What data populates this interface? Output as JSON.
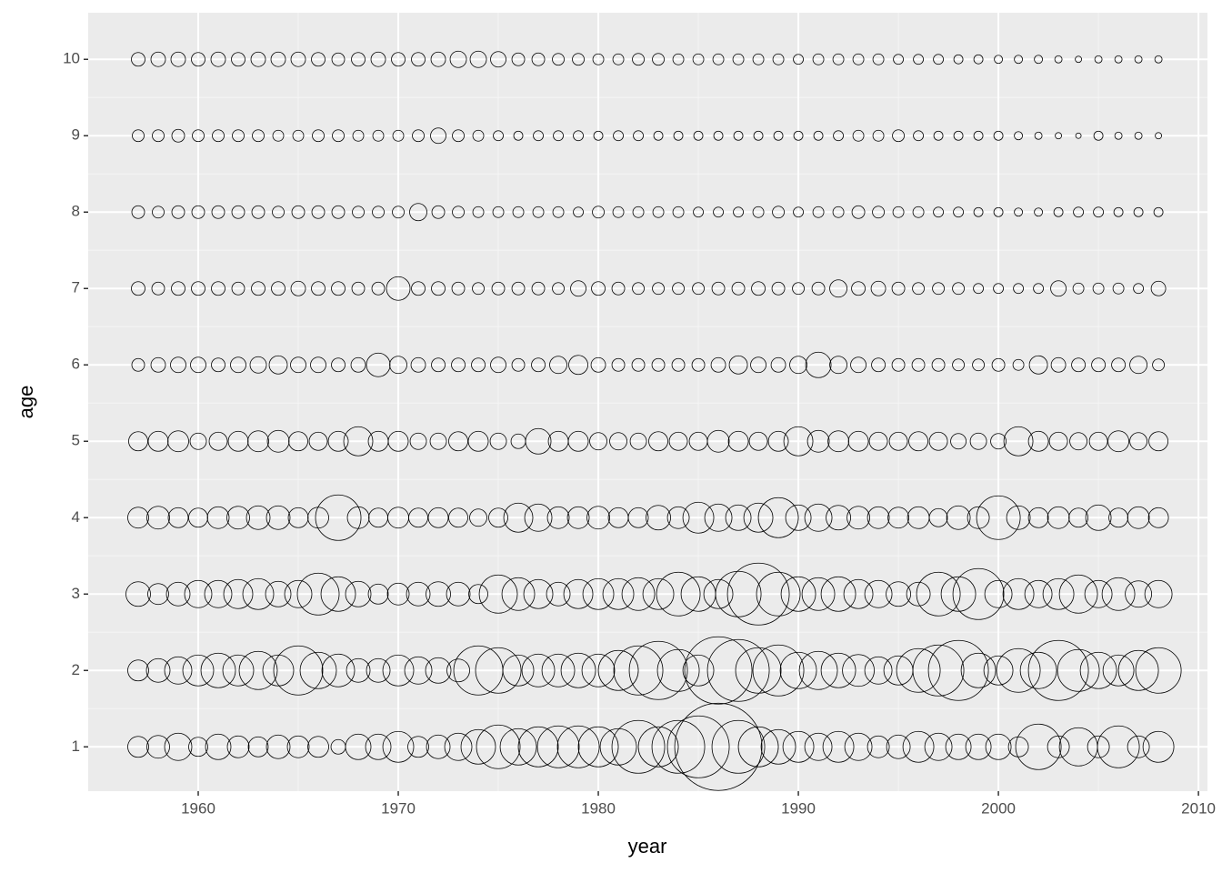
{
  "chart_data": {
    "type": "bubble",
    "x_label": "year",
    "y_label": "age",
    "x": [
      1957,
      1958,
      1959,
      1960,
      1961,
      1962,
      1963,
      1964,
      1965,
      1966,
      1967,
      1968,
      1969,
      1970,
      1971,
      1972,
      1973,
      1974,
      1975,
      1976,
      1977,
      1978,
      1979,
      1980,
      1981,
      1982,
      1983,
      1984,
      1985,
      1986,
      1987,
      1988,
      1989,
      1990,
      1991,
      1992,
      1993,
      1994,
      1995,
      1996,
      1997,
      1998,
      1999,
      2000,
      2001,
      2002,
      2003,
      2004,
      2005,
      2006,
      2007,
      2008
    ],
    "rows": [
      {
        "y": 1,
        "sizes": [
          11.5,
          12.5,
          15,
          10.5,
          14,
          12,
          11,
          13,
          12,
          11.5,
          8,
          14,
          14,
          17,
          11.5,
          13,
          15,
          19,
          24,
          20,
          22,
          23,
          23,
          22,
          20,
          29,
          22,
          29,
          34,
          48,
          29,
          22,
          19,
          17,
          15,
          17,
          15,
          12,
          13,
          17,
          15,
          14,
          14,
          14,
          11,
          25,
          12,
          21,
          12,
          23,
          12,
          17
        ]
      },
      {
        "y": 2,
        "sizes": [
          11.5,
          13,
          15,
          17,
          19,
          17,
          21,
          17,
          27,
          20,
          18,
          13,
          13,
          17,
          15,
          14,
          12.5,
          27,
          25,
          17,
          18,
          18,
          19,
          18,
          22,
          27,
          32,
          23,
          17,
          37,
          34,
          25,
          28,
          20,
          21,
          19,
          17.5,
          15,
          16,
          24,
          28,
          33,
          19,
          16,
          24,
          20,
          33,
          23,
          20,
          17,
          22,
          25
        ]
      },
      {
        "y": 3,
        "sizes": [
          13.5,
          11.5,
          13,
          15,
          15,
          16,
          17,
          14,
          15,
          23,
          19,
          14,
          11,
          12,
          13,
          13.5,
          13,
          10.5,
          21,
          18,
          16,
          13,
          16,
          17,
          17,
          18,
          17,
          24,
          19,
          16,
          25,
          34,
          24,
          19,
          18,
          19,
          16,
          15,
          13.5,
          13,
          24,
          19,
          28,
          15,
          17,
          15,
          17,
          21,
          15,
          18,
          14.5,
          15
        ]
      },
      {
        "y": 4,
        "sizes": [
          11.5,
          12.5,
          11,
          10.5,
          12,
          12.5,
          13,
          13,
          11,
          11.5,
          25,
          12,
          10.5,
          11.5,
          10.5,
          11,
          10.5,
          9.5,
          10.5,
          16,
          15,
          12,
          12,
          12.5,
          11,
          11,
          13.5,
          12,
          17,
          15,
          14,
          16,
          22,
          14,
          15,
          13.5,
          12.5,
          12,
          11.5,
          12,
          10,
          13,
          12,
          24,
          13,
          11,
          12,
          10.5,
          14,
          10.5,
          12,
          11
        ]
      },
      {
        "y": 5,
        "sizes": [
          10.5,
          11,
          11.5,
          9,
          10,
          11,
          11.5,
          12,
          10.5,
          10,
          11,
          16,
          11,
          11,
          9,
          9,
          10.5,
          11,
          9,
          8,
          14,
          11,
          11,
          9.5,
          9.5,
          9,
          10.5,
          10,
          10,
          12,
          11,
          10,
          11,
          16,
          12,
          11.5,
          11,
          10,
          10,
          10.5,
          10,
          8.5,
          9,
          8.5,
          16,
          11,
          10,
          9.5,
          10,
          11.5,
          9.5,
          10.5
        ]
      },
      {
        "y": 6,
        "sizes": [
          7,
          8,
          8.5,
          8.5,
          7.5,
          8.5,
          9,
          10,
          8.5,
          8.5,
          7.5,
          8,
          13,
          9.5,
          8,
          7.5,
          7.5,
          7.5,
          8.5,
          7,
          7.5,
          9.5,
          10.5,
          8,
          7,
          7,
          7,
          7,
          7,
          8,
          10,
          8.5,
          8,
          9.5,
          14,
          9.5,
          8.5,
          7.5,
          7,
          7,
          7,
          6.5,
          6.5,
          7,
          6,
          10,
          8,
          7.5,
          7.5,
          7.5,
          9.5,
          6.5
        ]
      },
      {
        "y": 7,
        "sizes": [
          7.5,
          7,
          7.5,
          7.5,
          7.5,
          7,
          7.5,
          7.5,
          8,
          7.5,
          7.5,
          7,
          7,
          13,
          7.5,
          7.5,
          7,
          6.5,
          7,
          7,
          7,
          6.5,
          8.5,
          7.5,
          7,
          6.5,
          6.5,
          6.5,
          6.5,
          7,
          7,
          7.5,
          7,
          6.5,
          7,
          9.5,
          7.5,
          8,
          7,
          6.5,
          6.5,
          6.5,
          5.5,
          5.5,
          5.5,
          5.5,
          8.5,
          6,
          6,
          6,
          5.5,
          8
        ]
      },
      {
        "y": 8,
        "sizes": [
          7,
          6.5,
          7,
          7,
          7,
          7,
          7,
          6.5,
          7,
          7,
          7,
          6.5,
          6.5,
          6.5,
          9.5,
          7,
          6.5,
          6,
          6,
          6,
          6,
          6,
          5.5,
          6.5,
          6,
          6,
          6,
          6,
          5.5,
          5.5,
          5.5,
          6,
          6.5,
          5.5,
          6,
          6,
          7,
          6.5,
          6,
          6,
          5.5,
          5.5,
          5,
          5,
          4.5,
          4.5,
          5,
          5.5,
          5.5,
          5,
          5,
          5
        ]
      },
      {
        "y": 9,
        "sizes": [
          6.5,
          6.5,
          7,
          6.5,
          6.5,
          6.5,
          6.5,
          6,
          6,
          6.5,
          6.5,
          6,
          6,
          6,
          6.5,
          8.5,
          6.5,
          6,
          5.5,
          5,
          5.5,
          5.5,
          5.5,
          5,
          5.5,
          5.5,
          5,
          5,
          5,
          5,
          5,
          5,
          5,
          5,
          5,
          5.5,
          6,
          6,
          6.5,
          5.5,
          5,
          5,
          5,
          5,
          4.5,
          4,
          3.5,
          3,
          5,
          4,
          4,
          3.5
        ]
      },
      {
        "y": 10,
        "sizes": [
          7.5,
          8,
          8,
          7.5,
          8,
          7.5,
          8,
          8,
          8,
          7.5,
          7,
          7.5,
          8,
          7.5,
          7.5,
          8,
          9,
          9,
          8.5,
          7,
          7,
          6.5,
          6.5,
          6,
          6,
          6.5,
          6.5,
          6,
          6,
          6,
          6,
          6,
          6,
          5.5,
          6,
          6,
          6,
          6,
          5.5,
          5.5,
          5.5,
          5,
          5,
          4.5,
          4.5,
          4.5,
          4,
          3.5,
          4,
          4,
          4,
          4
        ]
      }
    ],
    "xlim": [
      1954.5,
      2010.45
    ],
    "ylim": [
      0.42,
      10.61
    ],
    "xticks": [
      1960,
      1970,
      1980,
      1990,
      2000,
      2010
    ],
    "yticks": [
      1,
      2,
      3,
      4,
      5,
      6,
      7,
      8,
      9,
      10
    ],
    "grid": true
  }
}
